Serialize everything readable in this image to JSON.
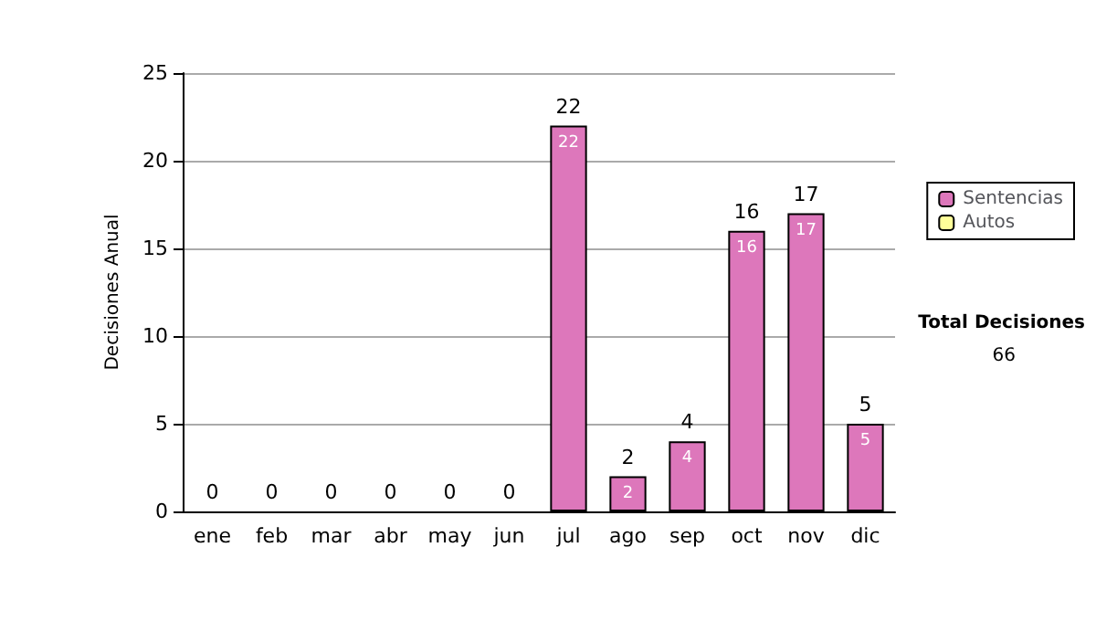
{
  "chart_data": {
    "type": "bar",
    "stacked": true,
    "ylabel": "Decisiones Anual",
    "categories": [
      "ene",
      "feb",
      "mar",
      "abr",
      "may",
      "jun",
      "jul",
      "ago",
      "sep",
      "oct",
      "nov",
      "dic"
    ],
    "series": [
      {
        "name": "Sentencias",
        "color": "#dd77bb",
        "values": [
          0,
          0,
          0,
          0,
          0,
          0,
          22,
          2,
          4,
          16,
          17,
          5
        ],
        "value_labels": [
          null,
          null,
          null,
          null,
          null,
          null,
          "22",
          "2",
          "4",
          "16",
          "17",
          "5"
        ]
      },
      {
        "name": "Autos",
        "color": "#ffff99",
        "values": [
          0,
          0,
          0,
          0,
          0,
          0,
          0,
          0,
          0,
          0,
          0,
          0
        ]
      }
    ],
    "totals": [
      "0",
      "0",
      "0",
      "0",
      "0",
      "0",
      "22",
      "2",
      "4",
      "16",
      "17",
      "5"
    ],
    "ylim": [
      0,
      25
    ],
    "yticks": [
      0,
      5,
      10,
      15,
      20,
      25
    ],
    "grid": "y",
    "legend": "right",
    "annotations": [
      "Total Decisiones",
      "66"
    ]
  }
}
